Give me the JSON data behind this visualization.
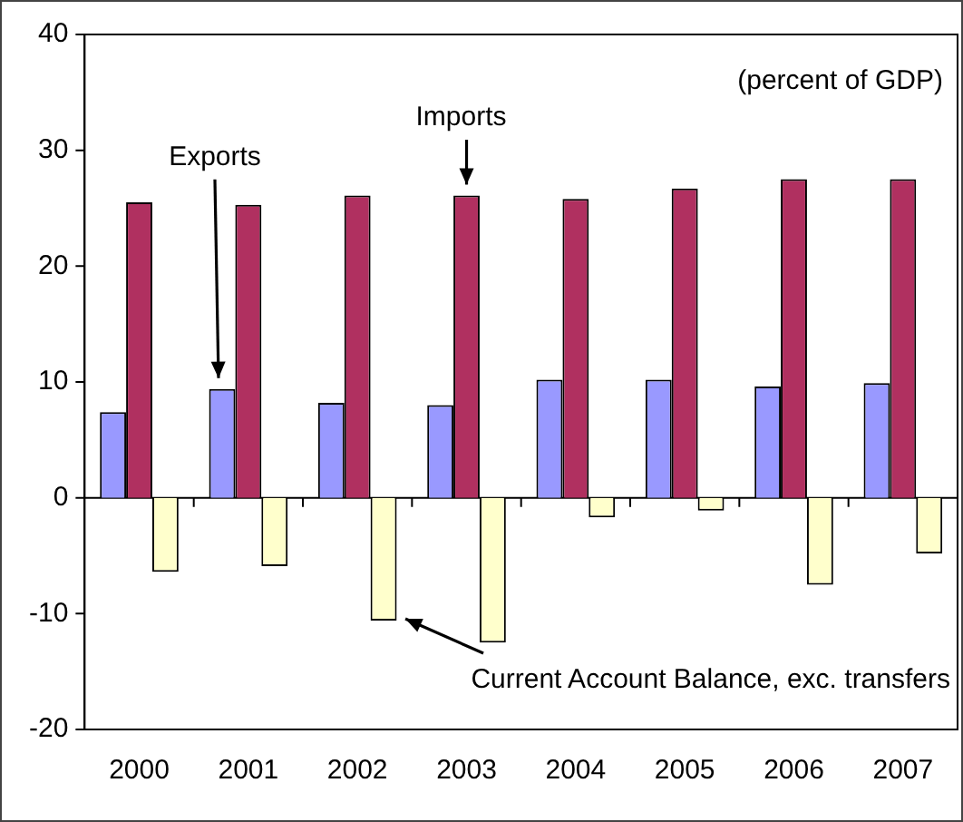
{
  "chart_data": {
    "type": "bar",
    "categories": [
      "2000",
      "2001",
      "2002",
      "2003",
      "2004",
      "2005",
      "2006",
      "2007"
    ],
    "series": [
      {
        "name": "Exports",
        "color": "#9999ff",
        "values": [
          7.4,
          9.4,
          8.2,
          8.0,
          10.2,
          10.2,
          9.6,
          9.9
        ]
      },
      {
        "name": "Imports",
        "color": "#b03060",
        "values": [
          25.5,
          25.3,
          26.1,
          26.1,
          25.8,
          26.7,
          27.5,
          27.5
        ]
      },
      {
        "name": "Current Account Balance, exc. transfers",
        "color": "#ffffcc",
        "values": [
          -6.4,
          -5.9,
          -10.6,
          -12.5,
          -1.7,
          -1.1,
          -7.5,
          -4.8
        ]
      }
    ],
    "annotations": [
      "(percent of GDP)"
    ],
    "ylim": [
      -20,
      40
    ],
    "yticks": [
      -20,
      -10,
      0,
      10,
      20,
      30,
      40
    ],
    "legend": false
  }
}
